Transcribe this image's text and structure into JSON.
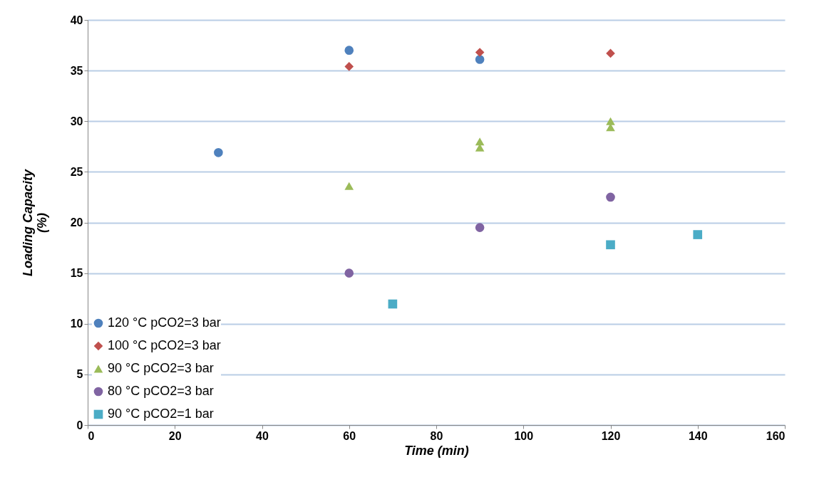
{
  "chart_data": {
    "type": "scatter",
    "xlabel": "Time  (min)",
    "ylabel": "Loading Capacity (%)",
    "xlim": [
      0,
      160
    ],
    "xticks": [
      0,
      20,
      40,
      60,
      80,
      100,
      120,
      140,
      160
    ],
    "ylim": [
      0,
      40
    ],
    "yticks": [
      0,
      5,
      10,
      15,
      20,
      25,
      30,
      35,
      40
    ],
    "grid": "y",
    "legend": "bottom left",
    "series": [
      {
        "name": "120 °C pCO2=3 bar",
        "color": "#4f81bd",
        "marker": "circle",
        "x": [
          30,
          60,
          90
        ],
        "values": [
          26.9,
          37.0,
          36.1
        ]
      },
      {
        "name": "100 °C pCO2=3 bar",
        "color": "#c0504d",
        "marker": "diamond",
        "x": [
          60,
          90,
          120
        ],
        "values": [
          35.4,
          36.8,
          36.7
        ]
      },
      {
        "name": "90 °C pCO2=3 bar",
        "color": "#9bbb59",
        "marker": "triangle",
        "x": [
          60,
          90,
          90,
          120,
          120
        ],
        "values": [
          23.6,
          28.0,
          27.4,
          30.0,
          29.4
        ]
      },
      {
        "name": "80 °C pCO2=3 bar",
        "color": "#8064a2",
        "marker": "circle",
        "x": [
          60,
          90,
          120
        ],
        "values": [
          15.0,
          19.5,
          22.5
        ]
      },
      {
        "name": "90 °C pCO2=1 bar",
        "color": "#4bacc6",
        "marker": "square",
        "x": [
          70,
          120,
          140
        ],
        "values": [
          11.95,
          17.8,
          18.8
        ]
      }
    ]
  }
}
